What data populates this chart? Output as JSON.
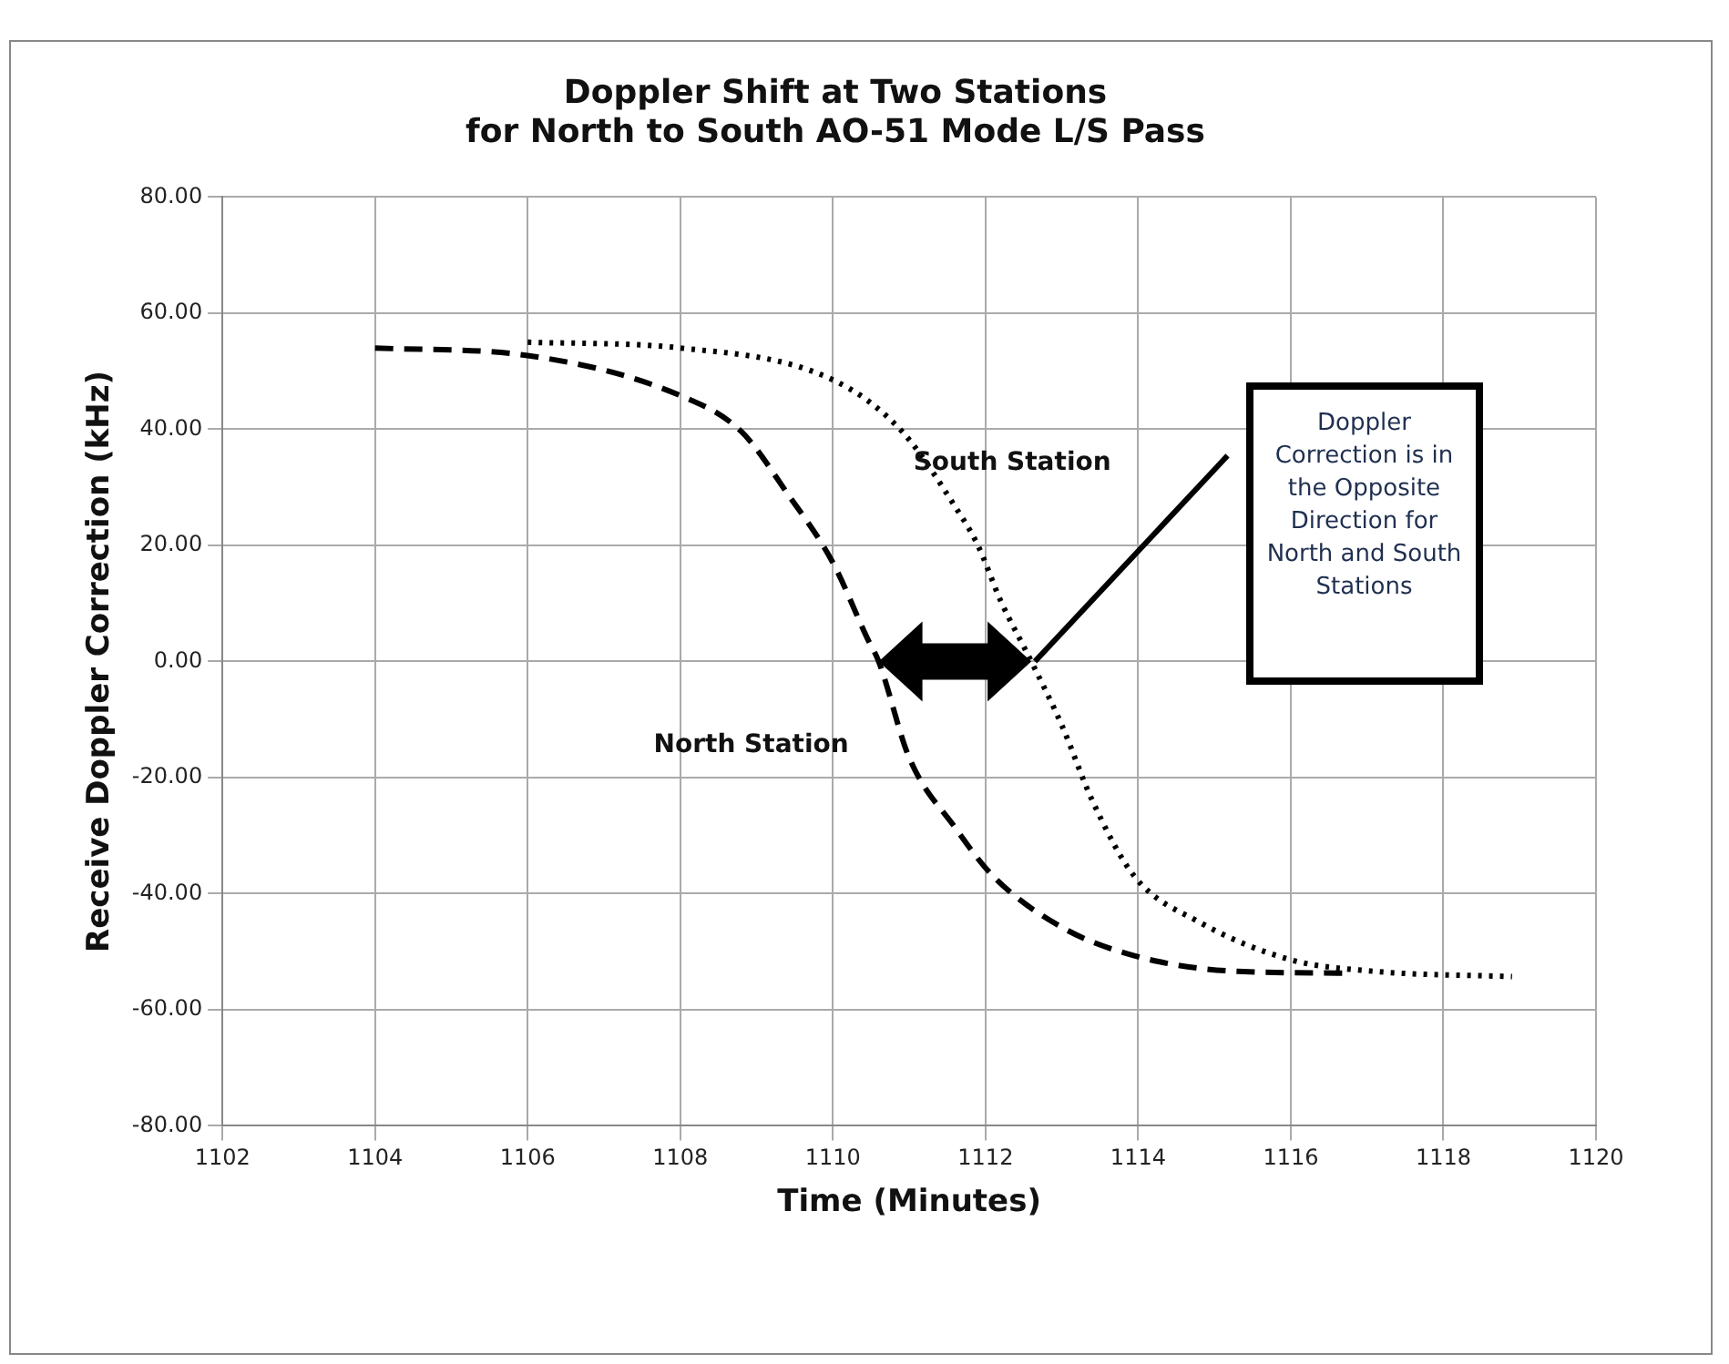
{
  "chart_data": {
    "type": "line",
    "title": "Doppler Shift at Two Stations\nfor North to South AO-51 Mode L/S Pass",
    "xlabel": "Time (Minutes)",
    "ylabel": "Receive Doppler Correction (kHz)",
    "series": [
      {
        "color": "#000000",
        "line_style": "dashed",
        "x": [
          1104,
          1106,
          1108,
          1108.8,
          1109.4,
          1110,
          1110.45,
          1110.6,
          1111,
          1111.6,
          1112.1,
          1113,
          1113.95,
          1115.3,
          1116.8
        ],
        "values": [
          54,
          52.7,
          45.8,
          39.6,
          29,
          17,
          4,
          0,
          -16.6,
          -28.6,
          -37,
          -45.8,
          -50.7,
          -53.4,
          -53.7
        ]
      },
      {
        "color": "#000000",
        "line_style": "dotted",
        "x": [
          1106,
          1108,
          1110,
          1110.9,
          1111.6,
          1111.9,
          1112.2,
          1112.6,
          1113,
          1113.4,
          1113.95,
          1114.8,
          1116,
          1117.1,
          1118.9
        ],
        "values": [
          55,
          54,
          48.5,
          39.7,
          26.7,
          20,
          10.4,
          0,
          -11,
          -24,
          -37,
          -44.9,
          -51.4,
          -53.4,
          -54.3
        ]
      }
    ],
    "xlim": [
      1102,
      1120
    ],
    "xticks": [
      1102,
      1104,
      1106,
      1108,
      1110,
      1112,
      1114,
      1116,
      1118,
      1120
    ],
    "ylim": [
      -80,
      80
    ],
    "yticks": [
      {
        "value": -80,
        "label": "-80.00"
      },
      {
        "value": -60,
        "label": "-60.00"
      },
      {
        "value": -40,
        "label": "-40.00"
      },
      {
        "value": -20,
        "label": "-20.00"
      },
      {
        "value": 0,
        "label": "0.00"
      },
      {
        "value": 20,
        "label": "20.00"
      },
      {
        "value": 40,
        "label": "40.00"
      },
      {
        "value": 60,
        "label": "60.00"
      },
      {
        "value": 80,
        "label": "80.00"
      }
    ],
    "grid": true,
    "marker": "none",
    "annotations": [
      "South Station",
      "North Station",
      "Doppler Correction is in the Opposite Direction for North and South Stations"
    ]
  }
}
